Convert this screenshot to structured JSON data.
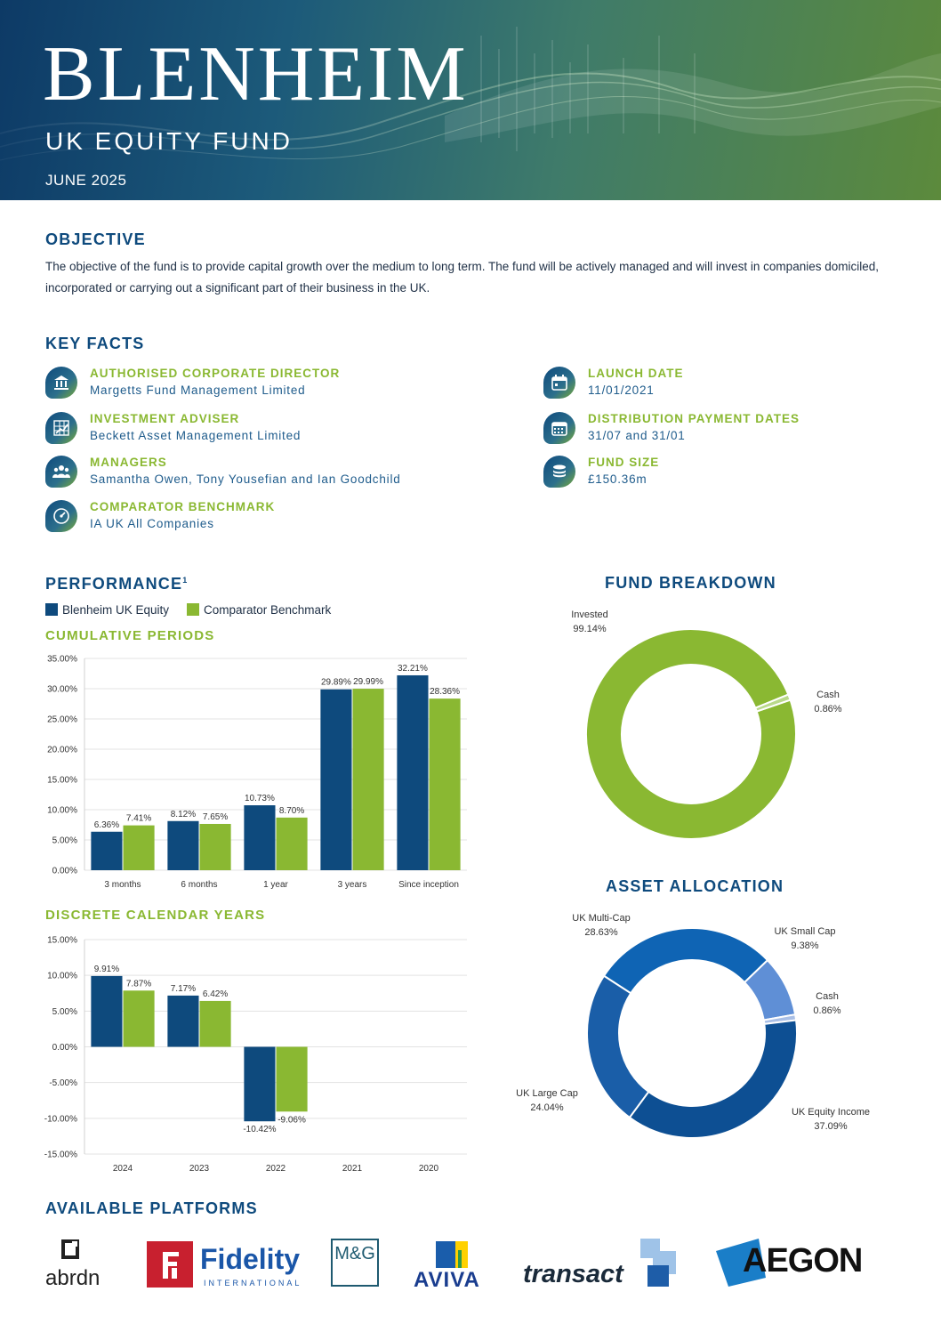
{
  "header": {
    "brand": "BLENHEIM",
    "fund_name": "UK EQUITY FUND",
    "date": "JUNE 2025"
  },
  "objective": {
    "title": "OBJECTIVE",
    "text": "The objective of the fund is to provide capital growth over the medium to long term. The fund will be actively managed and will invest in companies domiciled, incorporated or carrying out a significant part of their business in the UK."
  },
  "key_facts": {
    "title": "KEY FACTS",
    "left": [
      {
        "label": "AUTHORISED CORPORATE DIRECTOR",
        "value": "Margetts Fund Management Limited",
        "icon": "bank-icon"
      },
      {
        "label": "INVESTMENT ADVISER",
        "value": "Beckett Asset Management Limited",
        "icon": "chart-grid-icon"
      },
      {
        "label": "MANAGERS",
        "value": "Samantha Owen, Tony Yousefian and Ian Goodchild",
        "icon": "people-icon"
      },
      {
        "label": "COMPARATOR BENCHMARK",
        "value": "IA UK All Companies",
        "icon": "gauge-icon"
      }
    ],
    "right": [
      {
        "label": "LAUNCH DATE",
        "value": "11/01/2021",
        "icon": "calendar-icon"
      },
      {
        "label": "DISTRIBUTION PAYMENT DATES",
        "value": "31/07 and 31/01",
        "icon": "calendar-grid-icon"
      },
      {
        "label": "FUND SIZE",
        "value": "£150.36m",
        "icon": "coins-icon"
      }
    ]
  },
  "performance": {
    "title": "PERFORMANCE",
    "footnote_marker": "1",
    "legend": [
      "Blenheim UK Equity",
      "Comparator Benchmark"
    ],
    "cumulative_title": "CUMULATIVE PERIODS",
    "discrete_title": "DISCRETE CALENDAR YEARS"
  },
  "fund_breakdown_title": "FUND BREAKDOWN",
  "asset_allocation_title": "ASSET ALLOCATION",
  "platforms": {
    "title": "AVAILABLE PLATFORMS",
    "logos": [
      "abrdn",
      "Fidelity",
      "INTERNATIONAL",
      "M&G",
      "AVIVA",
      "transact",
      "AEGON"
    ]
  },
  "colors": {
    "fund": "#0e4a7d",
    "benchmark": "#8ab832",
    "heading": "#0e4a7d",
    "accent": "#8ab832"
  },
  "chart_data": [
    {
      "type": "bar",
      "title": "CUMULATIVE PERIODS",
      "categories": [
        "3 months",
        "6 months",
        "1 year",
        "3 years",
        "Since inception"
      ],
      "series": [
        {
          "name": "Blenheim UK Equity",
          "values": [
            6.36,
            8.12,
            10.73,
            29.89,
            32.21
          ],
          "labels": [
            "6.36%",
            "8.12%",
            "10.73%",
            "29.89%",
            "32.21%"
          ]
        },
        {
          "name": "Comparator Benchmark",
          "values": [
            7.41,
            7.65,
            8.7,
            29.99,
            28.36
          ],
          "labels": [
            "7.41%",
            "7.65%",
            "8.70%",
            "29.99%",
            "28.36%"
          ]
        }
      ],
      "ylim": [
        0,
        35
      ],
      "yticks": [
        "0.00%",
        "5.00%",
        "10.00%",
        "15.00%",
        "20.00%",
        "25.00%",
        "30.00%",
        "35.00%"
      ],
      "grid": true
    },
    {
      "type": "bar",
      "title": "DISCRETE CALENDAR YEARS",
      "categories": [
        "2024",
        "2023",
        "2022",
        "2021",
        "2020"
      ],
      "series": [
        {
          "name": "Blenheim UK Equity",
          "values": [
            9.91,
            7.17,
            -10.42,
            null,
            null
          ],
          "labels": [
            "9.91%",
            "7.17%",
            "-10.42%",
            "",
            ""
          ]
        },
        {
          "name": "Comparator Benchmark",
          "values": [
            7.87,
            6.42,
            -9.06,
            null,
            null
          ],
          "labels": [
            "7.87%",
            "6.42%",
            "-9.06%",
            "",
            ""
          ]
        }
      ],
      "ylim": [
        -15,
        15
      ],
      "yticks": [
        "-15.00%",
        "-10.00%",
        "-5.00%",
        "0.00%",
        "5.00%",
        "10.00%",
        "15.00%"
      ],
      "grid": true
    },
    {
      "type": "pie",
      "title": "FUND BREAKDOWN",
      "donut": true,
      "slices": [
        {
          "name": "Invested",
          "value": 99.14,
          "label": "99.14%",
          "color": "#8ab832"
        },
        {
          "name": "Cash",
          "value": 0.86,
          "label": "0.86%",
          "color": "#b9d98a"
        }
      ]
    },
    {
      "type": "pie",
      "title": "ASSET ALLOCATION",
      "donut": true,
      "slices": [
        {
          "name": "UK Multi-Cap",
          "value": 28.63,
          "label": "28.63%",
          "color": "#0f64b4"
        },
        {
          "name": "UK Small Cap",
          "value": 9.38,
          "label": "9.38%",
          "color": "#5f8fd6"
        },
        {
          "name": "Cash",
          "value": 0.86,
          "label": "0.86%",
          "color": "#a9bfe6"
        },
        {
          "name": "UK Equity Income",
          "value": 37.09,
          "label": "37.09%",
          "color": "#0d4f93"
        },
        {
          "name": "UK Large Cap",
          "value": 24.04,
          "label": "24.04%",
          "color": "#1a5ea8"
        }
      ]
    }
  ]
}
